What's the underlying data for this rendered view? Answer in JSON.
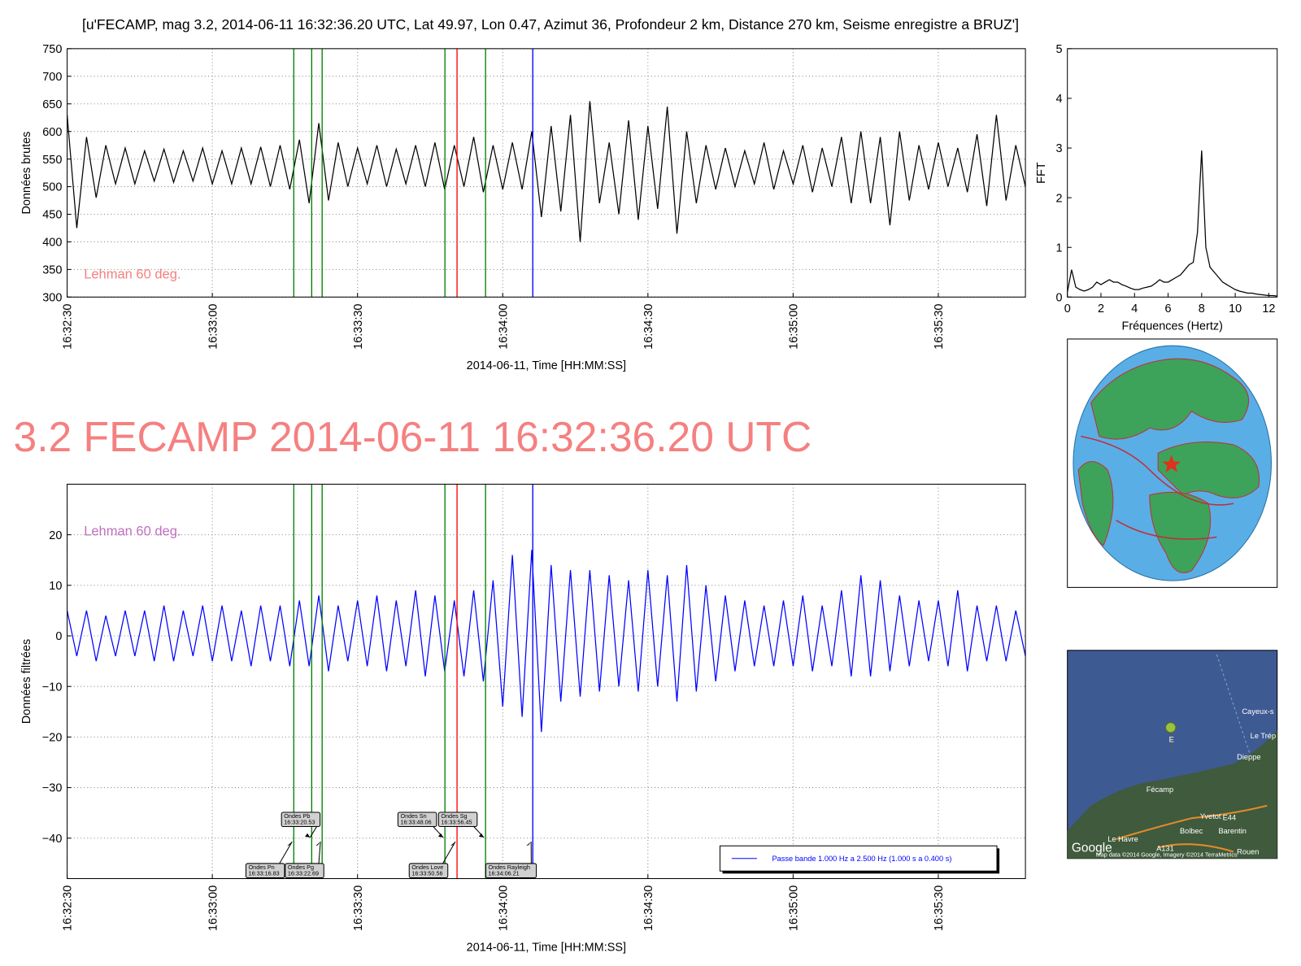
{
  "page_title": "3.2 FECAMP 2014-06-11 16:32:36.20 UTC",
  "page_title_color": "#f58080",
  "chart_data": [
    {
      "type": "line",
      "title": "[u'FECAMP, mag 3.2, 2014-06-11 16:32:36.20 UTC, Lat 49.97, Lon 0.47, Azimut  36, Profondeur 2 km, Distance   270 km, Seisme enregistre a BRUZ']",
      "xlabel": "2014-06-11, Time [HH:MM:SS]",
      "ylabel": "Données brutes",
      "annotation": "Lehman 60 deg.",
      "annotation_color": "#f58080",
      "grid": true,
      "xlim": [
        59550,
        59748
      ],
      "xticks": [
        {
          "value": 59550,
          "label": "16:32:30"
        },
        {
          "value": 59580,
          "label": "16:33:00"
        },
        {
          "value": 59610,
          "label": "16:33:30"
        },
        {
          "value": 59640,
          "label": "16:34:00"
        },
        {
          "value": 59670,
          "label": "16:34:30"
        },
        {
          "value": 59700,
          "label": "16:35:00"
        },
        {
          "value": 59730,
          "label": "16:35:30"
        }
      ],
      "ylim": [
        300,
        750
      ],
      "yticks": [
        300,
        350,
        400,
        450,
        500,
        550,
        600,
        650,
        700,
        750
      ],
      "x": [
        59550,
        59552,
        59554,
        59556,
        59558,
        59560,
        59562,
        59564,
        59566,
        59568,
        59570,
        59572,
        59574,
        59576,
        59578,
        59580,
        59582,
        59584,
        59586,
        59588,
        59590,
        59592,
        59594,
        59596,
        59598,
        59600,
        59602,
        59604,
        59606,
        59608,
        59610,
        59612,
        59614,
        59616,
        59618,
        59620,
        59622,
        59624,
        59626,
        59628,
        59630,
        59632,
        59634,
        59636,
        59638,
        59640,
        59642,
        59644,
        59646,
        59648,
        59650,
        59652,
        59654,
        59656,
        59658,
        59660,
        59662,
        59664,
        59666,
        59668,
        59670,
        59672,
        59674,
        59676,
        59678,
        59680,
        59682,
        59684,
        59686,
        59688,
        59690,
        59692,
        59694,
        59696,
        59698,
        59700,
        59702,
        59704,
        59706,
        59708,
        59710,
        59712,
        59714,
        59716,
        59718,
        59720,
        59722,
        59724,
        59726,
        59728,
        59730,
        59732,
        59734,
        59736,
        59738,
        59740,
        59742,
        59744,
        59746,
        59748
      ],
      "series": [
        {
          "color": "#000000",
          "values": [
            630,
            425,
            590,
            480,
            575,
            505,
            570,
            505,
            565,
            510,
            568,
            508,
            565,
            510,
            570,
            505,
            565,
            505,
            570,
            505,
            572,
            500,
            575,
            495,
            585,
            470,
            615,
            475,
            580,
            500,
            570,
            505,
            575,
            500,
            568,
            505,
            575,
            500,
            580,
            495,
            575,
            500,
            590,
            490,
            575,
            495,
            580,
            495,
            600,
            445,
            610,
            455,
            630,
            400,
            655,
            470,
            580,
            450,
            620,
            440,
            610,
            460,
            645,
            415,
            600,
            470,
            575,
            495,
            570,
            500,
            565,
            505,
            580,
            495,
            565,
            505,
            575,
            490,
            570,
            500,
            590,
            470,
            600,
            470,
            590,
            430,
            600,
            475,
            575,
            495,
            580,
            500,
            570,
            490,
            595,
            465,
            630,
            475,
            575,
            500
          ]
        }
      ],
      "vlines": [
        {
          "x": 59596.83,
          "color": "#008000"
        },
        {
          "x": 59600.53,
          "color": "#008000"
        },
        {
          "x": 59602.69,
          "color": "#008000"
        },
        {
          "x": 59628.06,
          "color": "#008000"
        },
        {
          "x": 59630.56,
          "color": "#ff0000"
        },
        {
          "x": 59636.45,
          "color": "#008000"
        },
        {
          "x": 59646.21,
          "color": "#0000ff"
        }
      ]
    },
    {
      "type": "line",
      "xlabel": "2014-06-11, Time [HH:MM:SS]",
      "ylabel": "Données filtrées",
      "annotation": "Lehman 60 deg.",
      "annotation_color": "#c070c0",
      "grid": true,
      "legend": "lower right",
      "xlim": [
        59550,
        59748
      ],
      "xticks": [
        {
          "value": 59550,
          "label": "16:32:30"
        },
        {
          "value": 59580,
          "label": "16:33:00"
        },
        {
          "value": 59610,
          "label": "16:33:30"
        },
        {
          "value": 59640,
          "label": "16:34:00"
        },
        {
          "value": 59670,
          "label": "16:34:30"
        },
        {
          "value": 59700,
          "label": "16:35:00"
        },
        {
          "value": 59730,
          "label": "16:35:30"
        }
      ],
      "ylim": [
        -48,
        30
      ],
      "yticks": [
        {
          "value": -40,
          "label": "−40"
        },
        {
          "value": -30,
          "label": "−30"
        },
        {
          "value": -20,
          "label": "−20"
        },
        {
          "value": -10,
          "label": "−10"
        },
        0,
        10,
        20
      ],
      "x": [
        59550,
        59552,
        59554,
        59556,
        59558,
        59560,
        59562,
        59564,
        59566,
        59568,
        59570,
        59572,
        59574,
        59576,
        59578,
        59580,
        59582,
        59584,
        59586,
        59588,
        59590,
        59592,
        59594,
        59596,
        59598,
        59600,
        59602,
        59604,
        59606,
        59608,
        59610,
        59612,
        59614,
        59616,
        59618,
        59620,
        59622,
        59624,
        59626,
        59628,
        59630,
        59632,
        59634,
        59636,
        59638,
        59640,
        59642,
        59644,
        59646,
        59648,
        59650,
        59652,
        59654,
        59656,
        59658,
        59660,
        59662,
        59664,
        59666,
        59668,
        59670,
        59672,
        59674,
        59676,
        59678,
        59680,
        59682,
        59684,
        59686,
        59688,
        59690,
        59692,
        59694,
        59696,
        59698,
        59700,
        59702,
        59704,
        59706,
        59708,
        59710,
        59712,
        59714,
        59716,
        59718,
        59720,
        59722,
        59724,
        59726,
        59728,
        59730,
        59732,
        59734,
        59736,
        59738,
        59740,
        59742,
        59744,
        59746,
        59748
      ],
      "series": [
        {
          "name": "Passe bande 1.000 Hz a 2.500 Hz (1.000 s a 0.400 s)",
          "color": "#0000ff",
          "values": [
            5,
            -4,
            5,
            -5,
            4,
            -4,
            5,
            -4,
            5,
            -5,
            6,
            -5,
            5,
            -4,
            6,
            -5,
            6,
            -5,
            5,
            -6,
            6,
            -5,
            6,
            -6,
            7,
            -6,
            8,
            -7,
            6,
            -5,
            7,
            -6,
            8,
            -7,
            7,
            -6,
            9,
            -8,
            8,
            -7,
            7,
            -8,
            9,
            -9,
            11,
            -14,
            16,
            -16,
            17,
            -19,
            14,
            -13,
            13,
            -12,
            13,
            -11,
            12,
            -10,
            11,
            -11,
            13,
            -10,
            12,
            -13,
            14,
            -11,
            10,
            -9,
            8,
            -7,
            7,
            -6,
            6,
            -6,
            7,
            -6,
            8,
            -7,
            6,
            -6,
            9,
            -8,
            12,
            -8,
            11,
            -7,
            8,
            -6,
            7,
            -5,
            7,
            -6,
            9,
            -7,
            6,
            -5,
            6,
            -5,
            5,
            -4
          ]
        }
      ],
      "phases": [
        {
          "label": "Ondes Pn",
          "time": "16:33:16.83",
          "x": 59596.83,
          "color": "#008000"
        },
        {
          "label": "Ondes Pb",
          "time": "16:33:20.53",
          "x": 59600.53,
          "color": "#008000"
        },
        {
          "label": "Ondes Pg",
          "time": "16:33:22.69",
          "x": 59602.69,
          "color": "#008000"
        },
        {
          "label": "Ondes Sn",
          "time": "16:33:48.06",
          "x": 59628.06,
          "color": "#008000"
        },
        {
          "label": "Ondes Love",
          "time": "16:33:50.56",
          "x": 59630.56,
          "color": "#ff0000"
        },
        {
          "label": "Ondes Sg",
          "time": "16:33:56.45",
          "x": 59636.45,
          "color": "#008000"
        },
        {
          "label": "Ondes Rayleigh",
          "time": "16:34:06.21",
          "x": 59646.21,
          "color": "#0000ff"
        }
      ]
    },
    {
      "type": "line",
      "xlabel": "Fréquences (Hertz)",
      "ylabel": "FFT",
      "grid": false,
      "xlim": [
        0,
        12.5
      ],
      "xticks": [
        0,
        2,
        4,
        6,
        8,
        10,
        12
      ],
      "ylim": [
        0,
        5
      ],
      "yticks": [
        0,
        1,
        2,
        3,
        4,
        5
      ],
      "x": [
        0,
        0.25,
        0.5,
        0.75,
        1,
        1.25,
        1.5,
        1.75,
        2,
        2.25,
        2.5,
        2.75,
        3,
        3.25,
        3.5,
        3.75,
        4,
        4.25,
        4.5,
        4.75,
        5,
        5.25,
        5.5,
        5.75,
        6,
        6.25,
        6.5,
        6.75,
        7,
        7.25,
        7.5,
        7.75,
        8,
        8.25,
        8.5,
        8.75,
        9,
        9.25,
        9.5,
        9.75,
        10,
        10.25,
        10.5,
        10.75,
        11,
        11.25,
        11.5,
        11.75,
        12,
        12.25,
        12.5
      ],
      "series": [
        {
          "color": "#000000",
          "values": [
            0.1,
            0.55,
            0.2,
            0.15,
            0.12,
            0.15,
            0.2,
            0.3,
            0.25,
            0.3,
            0.35,
            0.3,
            0.3,
            0.25,
            0.22,
            0.18,
            0.15,
            0.15,
            0.18,
            0.2,
            0.22,
            0.28,
            0.35,
            0.3,
            0.3,
            0.35,
            0.4,
            0.45,
            0.55,
            0.65,
            0.7,
            1.3,
            2.95,
            1.0,
            0.6,
            0.5,
            0.4,
            0.3,
            0.25,
            0.2,
            0.15,
            0.12,
            0.1,
            0.08,
            0.08,
            0.06,
            0.05,
            0.04,
            0.03,
            0.03,
            0.02
          ]
        }
      ]
    }
  ],
  "local_map": {
    "labels": [
      "Cayeux-s",
      "Le Trép",
      "Dieppe",
      "Fécamp",
      "Yvetot",
      "Bolbec",
      "Barentin",
      "Le Havre",
      "Rouen",
      "E44",
      "A131",
      "E",
      "Google",
      "Map data ©2014 Google, Imagery ©2014 TerraMetrics"
    ]
  }
}
